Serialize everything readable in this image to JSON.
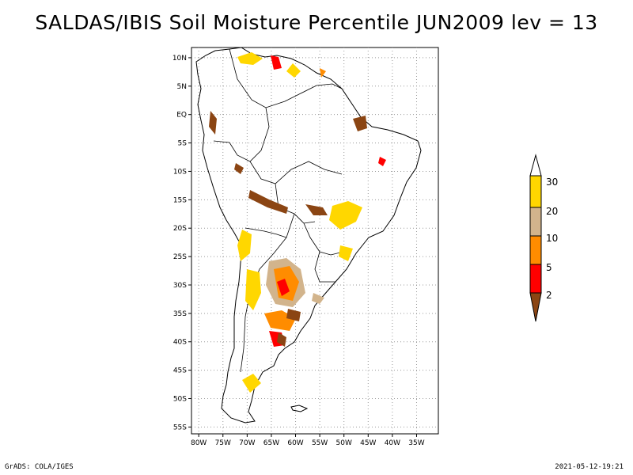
{
  "title": "SALDAS/IBIS Soil Moisture Percentile JUN2009 lev = 13",
  "map": {
    "region": "South America",
    "lon_range": [
      -80,
      -30
    ],
    "lat_range": [
      -56,
      12
    ],
    "grid": true,
    "lat_ticks": [
      "10N",
      "5N",
      "EQ",
      "5S",
      "10S",
      "15S",
      "20S",
      "25S",
      "30S",
      "35S",
      "40S",
      "45S",
      "50S",
      "55S"
    ],
    "lon_ticks": [
      "80W",
      "75W",
      "70W",
      "65W",
      "60W",
      "55W",
      "50W",
      "45W",
      "40W",
      "35W"
    ]
  },
  "colorbar": {
    "labels": [
      "2",
      "5",
      "10",
      "20",
      "30"
    ],
    "colors": {
      "below_2": "#8B4513",
      "2_5": "#FF0000",
      "5_10": "#FF8C00",
      "10_20": "#D2B48C",
      "20_30": "#FFD700",
      "above_30": "#FFFFFF"
    }
  },
  "footer": {
    "left": "GrADS: COLA/IGES",
    "right": "2021-05-12-19:21"
  }
}
